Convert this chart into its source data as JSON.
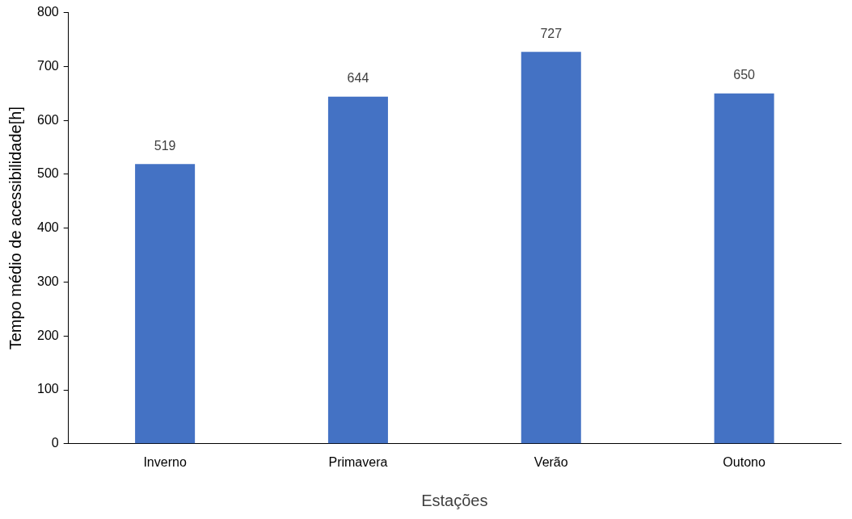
{
  "chart_data": {
    "type": "bar",
    "xlabel": "Estações",
    "ylabel": "Tempo médio de acessibilidade[h]",
    "categories": [
      "Inverno",
      "Primavera",
      "Verão",
      "Outono"
    ],
    "values": [
      519,
      644,
      727,
      650
    ],
    "color": "#4472c4",
    "ylim": [
      0,
      800
    ],
    "yticks": [
      0,
      100,
      200,
      300,
      400,
      500,
      600,
      700,
      800
    ],
    "grid": false,
    "legend": false,
    "data_labels": true
  }
}
